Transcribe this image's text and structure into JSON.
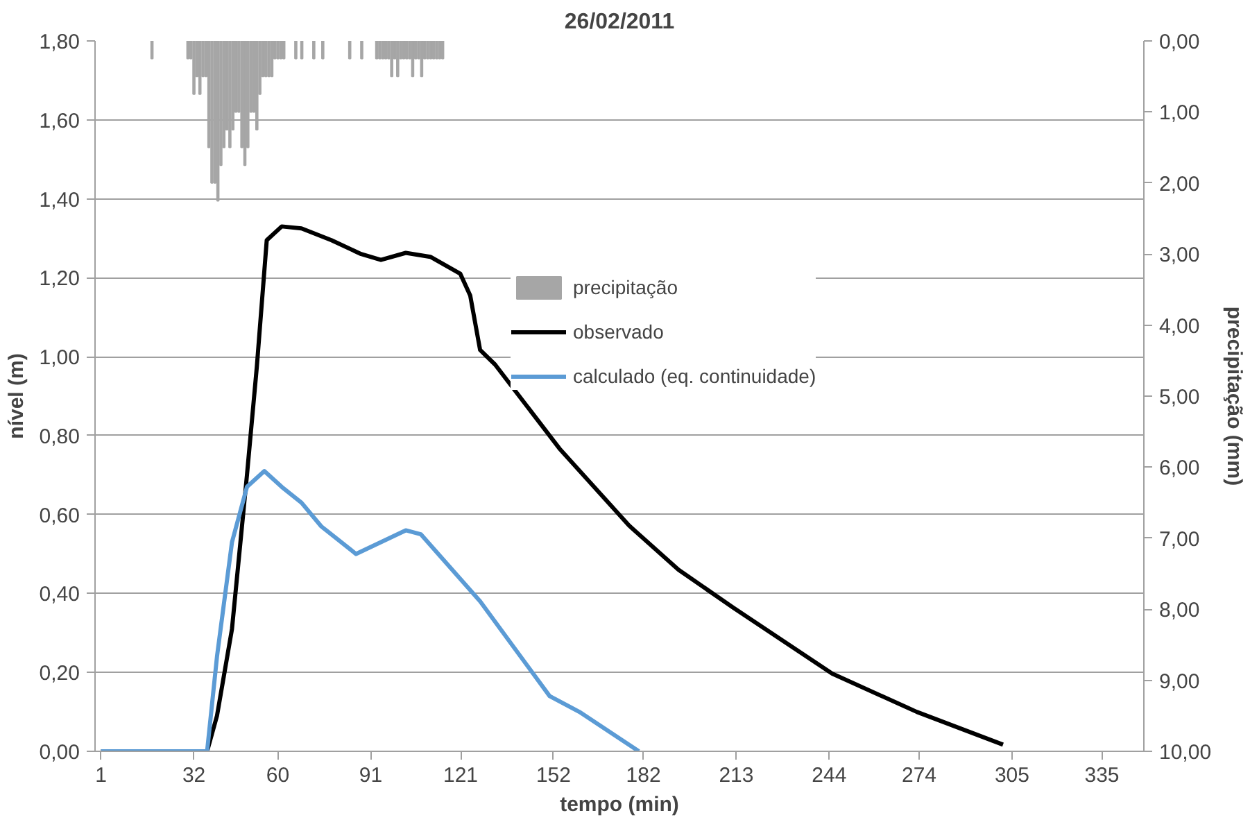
{
  "chart_data": {
    "type": "line",
    "title": "26/02/2011",
    "xlabel": "tempo (min)",
    "ylabel": "nível (m)",
    "y2label": "precipitação (mm)",
    "xlim": [
      -1,
      349
    ],
    "xticks": [
      1,
      32,
      60,
      91,
      121,
      152,
      182,
      213,
      244,
      274,
      305,
      335
    ],
    "ylim": [
      0,
      1.8
    ],
    "yticks": [
      {
        "value": 0,
        "label": "0,00"
      },
      {
        "value": 0.2,
        "label": "0,20"
      },
      {
        "value": 0.4,
        "label": "0,40"
      },
      {
        "value": 0.6,
        "label": "0,60"
      },
      {
        "value": 0.8,
        "label": "0,80"
      },
      {
        "value": 1.0,
        "label": "1,00"
      },
      {
        "value": 1.2,
        "label": "1,20"
      },
      {
        "value": 1.4,
        "label": "1,40"
      },
      {
        "value": 1.6,
        "label": "1,60"
      },
      {
        "value": 1.8,
        "label": "1,80"
      }
    ],
    "y2lim": [
      10,
      0
    ],
    "y2ticks": [
      {
        "value": 0,
        "label": "0,00"
      },
      {
        "value": 1,
        "label": "1,00"
      },
      {
        "value": 2,
        "label": "2,00"
      },
      {
        "value": 3,
        "label": "3,00"
      },
      {
        "value": 4,
        "label": "4,00"
      },
      {
        "value": 5,
        "label": "5,00"
      },
      {
        "value": 6,
        "label": "6,00"
      },
      {
        "value": 7,
        "label": "7,00"
      },
      {
        "value": 8,
        "label": "8,00"
      },
      {
        "value": 9,
        "label": "9,00"
      },
      {
        "value": 10,
        "label": "10,00"
      }
    ],
    "grid": "y",
    "legend": "top right",
    "series": [
      {
        "name": "precipitação",
        "type": "bar",
        "axis": "y2",
        "color": "#a6a6a6",
        "x": [
          18,
          30,
          31,
          32,
          33,
          34,
          35,
          36,
          37,
          38,
          39,
          40,
          41,
          42,
          43,
          44,
          45,
          46,
          47,
          48,
          49,
          50,
          51,
          52,
          53,
          54,
          55,
          56,
          57,
          58,
          59,
          60,
          61,
          62,
          66,
          68,
          72,
          75,
          84,
          88,
          93,
          94,
          95,
          96,
          97,
          98,
          99,
          100,
          101,
          102,
          103,
          104,
          105,
          106,
          107,
          108,
          109,
          110,
          111,
          112,
          113,
          114,
          115
        ],
        "values": [
          0.25,
          0.25,
          0.25,
          0.75,
          0.5,
          0.75,
          0.5,
          0.5,
          1.5,
          2.0,
          2.0,
          2.25,
          1.75,
          1.5,
          1.25,
          1.5,
          1.25,
          1.0,
          1.0,
          1.5,
          1.75,
          1.5,
          1.0,
          1.0,
          1.25,
          0.75,
          0.5,
          0.5,
          0.5,
          0.5,
          0.25,
          0.25,
          0.25,
          0.25,
          0.25,
          0.25,
          0.25,
          0.25,
          0.25,
          0.25,
          0.25,
          0.25,
          0.25,
          0.25,
          0.25,
          0.5,
          0.25,
          0.5,
          0.25,
          0.25,
          0.25,
          0.25,
          0.5,
          0.25,
          0.25,
          0.5,
          0.25,
          0.25,
          0.25,
          0.25,
          0.25,
          0.25,
          0.25
        ]
      },
      {
        "name": "observado",
        "color": "#000000",
        "x": [
          1,
          28,
          36.4,
          39.7,
          44.7,
          49.7,
          53,
          56.3,
          61.3,
          67.9,
          77.9,
          87.8,
          94.4,
          102.7,
          110.9,
          120.9,
          124.2,
          127.5,
          132.5,
          154,
          177.2,
          193.7,
          212,
          245,
          273.2,
          302
        ],
        "values": [
          0,
          0,
          0,
          0.09,
          0.31,
          0.7,
          0.975,
          1.295,
          1.33,
          1.325,
          1.295,
          1.26,
          1.245,
          1.263,
          1.253,
          1.21,
          1.155,
          1.017,
          0.98,
          0.767,
          0.572,
          0.46,
          0.364,
          0.197,
          0.1,
          0.017
        ]
      },
      {
        "name": "calculado (eq. continuidade)",
        "color": "#5b9bd5",
        "x": [
          1,
          36.4,
          39.7,
          44.7,
          49.7,
          55.5,
          61.3,
          67.9,
          74.5,
          86.1,
          94.4,
          102.7,
          107.7,
          127.5,
          150.7,
          160.6,
          180.5
        ],
        "values": [
          0,
          0,
          0.24,
          0.53,
          0.67,
          0.71,
          0.67,
          0.63,
          0.57,
          0.5,
          0.53,
          0.56,
          0.55,
          0.38,
          0.14,
          0.1,
          0
        ]
      }
    ]
  }
}
